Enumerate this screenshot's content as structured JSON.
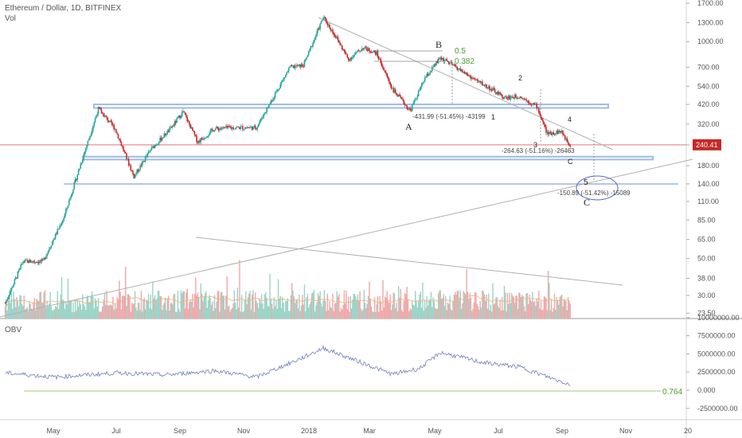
{
  "header": {
    "symbol": "Ethereum / Dollar, 1D, BITFINEX",
    "volume_label": "Vol",
    "obv_label": "OBV"
  },
  "colors": {
    "up": "#26a69a",
    "down": "#c62828",
    "band": "#9fb9e8",
    "band_line": "#6f8fd6",
    "trend": "#b0b0b0",
    "price_line": "#e57373",
    "obv_line": "#6f7fb8",
    "fib_green": "#4c9a2a",
    "circle": "#5566cc"
  },
  "chart_data": [
    {
      "type": "candlestick",
      "title": "Ethereum / Dollar, 1D, BITFINEX",
      "scale": "log",
      "price_ticks": [
        1700,
        1300,
        1000,
        700,
        540,
        420,
        320,
        240,
        180,
        140,
        110,
        85,
        65,
        50,
        38,
        30,
        23.5
      ],
      "price_tick_labels": [
        "1700.00",
        "1300.00",
        "1000.00",
        "700.00",
        "540.00",
        "420.00",
        "320.00",
        "240.00",
        "180.00",
        "140.00",
        "110.00",
        "85.00",
        "65.00",
        "50.00",
        "38.00",
        "30.00",
        "23.50"
      ],
      "last_price": 240.41,
      "last_price_label": "240.41",
      "x_ticks": [
        "May",
        "Jul",
        "Sep",
        "Nov",
        "2018",
        "Mar",
        "May",
        "Jul",
        "Sep",
        "Nov",
        "20"
      ],
      "approx_closes": [
        {
          "date": "2017-03-15",
          "close": 27
        },
        {
          "date": "2017-04-01",
          "close": 48
        },
        {
          "date": "2017-04-20",
          "close": 48
        },
        {
          "date": "2017-05-10",
          "close": 88
        },
        {
          "date": "2017-05-25",
          "close": 175
        },
        {
          "date": "2017-06-12",
          "close": 395
        },
        {
          "date": "2017-06-28",
          "close": 300
        },
        {
          "date": "2017-07-16",
          "close": 155
        },
        {
          "date": "2017-08-01",
          "close": 225
        },
        {
          "date": "2017-08-20",
          "close": 300
        },
        {
          "date": "2017-09-01",
          "close": 380
        },
        {
          "date": "2017-09-15",
          "close": 250
        },
        {
          "date": "2017-10-01",
          "close": 300
        },
        {
          "date": "2017-10-20",
          "close": 305
        },
        {
          "date": "2017-11-10",
          "close": 305
        },
        {
          "date": "2017-11-25",
          "close": 450
        },
        {
          "date": "2017-12-12",
          "close": 700
        },
        {
          "date": "2017-12-25",
          "close": 720
        },
        {
          "date": "2018-01-13",
          "close": 1400
        },
        {
          "date": "2018-01-25",
          "close": 1070
        },
        {
          "date": "2018-02-06",
          "close": 780
        },
        {
          "date": "2018-02-20",
          "close": 920
        },
        {
          "date": "2018-03-05",
          "close": 850
        },
        {
          "date": "2018-03-20",
          "close": 520
        },
        {
          "date": "2018-04-06",
          "close": 385
        },
        {
          "date": "2018-04-20",
          "close": 600
        },
        {
          "date": "2018-05-05",
          "close": 800
        },
        {
          "date": "2018-05-20",
          "close": 700
        },
        {
          "date": "2018-06-05",
          "close": 600
        },
        {
          "date": "2018-06-20",
          "close": 530
        },
        {
          "date": "2018-07-05",
          "close": 460
        },
        {
          "date": "2018-07-20",
          "close": 470
        },
        {
          "date": "2018-08-05",
          "close": 410
        },
        {
          "date": "2018-08-15",
          "close": 280
        },
        {
          "date": "2018-08-28",
          "close": 290
        },
        {
          "date": "2018-09-06",
          "close": 240
        }
      ],
      "support_bands": [
        {
          "price_low": 400,
          "price_high": 420
        },
        {
          "price_low": 196,
          "price_high": 204
        },
        {
          "price": 140
        }
      ],
      "annotations": {
        "wave_labels": [
          "A",
          "B",
          "C",
          "1",
          "2",
          "3",
          "4",
          "5",
          "C"
        ],
        "fib_levels": [
          "0.5",
          "0.382"
        ],
        "measures": [
          "-431.99 (-51.45%) -43199",
          "-264.63 (-51.16%) -26463",
          "-150.89 (-51.42%) -15089"
        ]
      }
    },
    {
      "type": "bar",
      "title": "Vol"
    },
    {
      "type": "line",
      "title": "OBV",
      "y_ticks": [
        10000000,
        7500000,
        5000000,
        2500000,
        0,
        -2500000
      ],
      "y_tick_labels": [
        "10000000.00",
        "7500000.00",
        "5000000.00",
        "2500000.00",
        "0.000",
        "-2500000.00"
      ],
      "approx_points": [
        {
          "date": "2017-03-15",
          "value": 2400000
        },
        {
          "date": "2017-05-01",
          "value": 1800000
        },
        {
          "date": "2017-07-01",
          "value": 2400000
        },
        {
          "date": "2017-08-15",
          "value": 2100000
        },
        {
          "date": "2017-10-01",
          "value": 2700000
        },
        {
          "date": "2017-11-10",
          "value": 1800000
        },
        {
          "date": "2017-12-20",
          "value": 4200000
        },
        {
          "date": "2018-01-13",
          "value": 5800000
        },
        {
          "date": "2018-02-15",
          "value": 4000000
        },
        {
          "date": "2018-03-20",
          "value": 2200000
        },
        {
          "date": "2018-04-15",
          "value": 3000000
        },
        {
          "date": "2018-05-05",
          "value": 5200000
        },
        {
          "date": "2018-06-15",
          "value": 3800000
        },
        {
          "date": "2018-07-20",
          "value": 3200000
        },
        {
          "date": "2018-08-20",
          "value": 1600000
        },
        {
          "date": "2018-09-06",
          "value": 800000
        }
      ],
      "reference_label": "0.764"
    }
  ]
}
